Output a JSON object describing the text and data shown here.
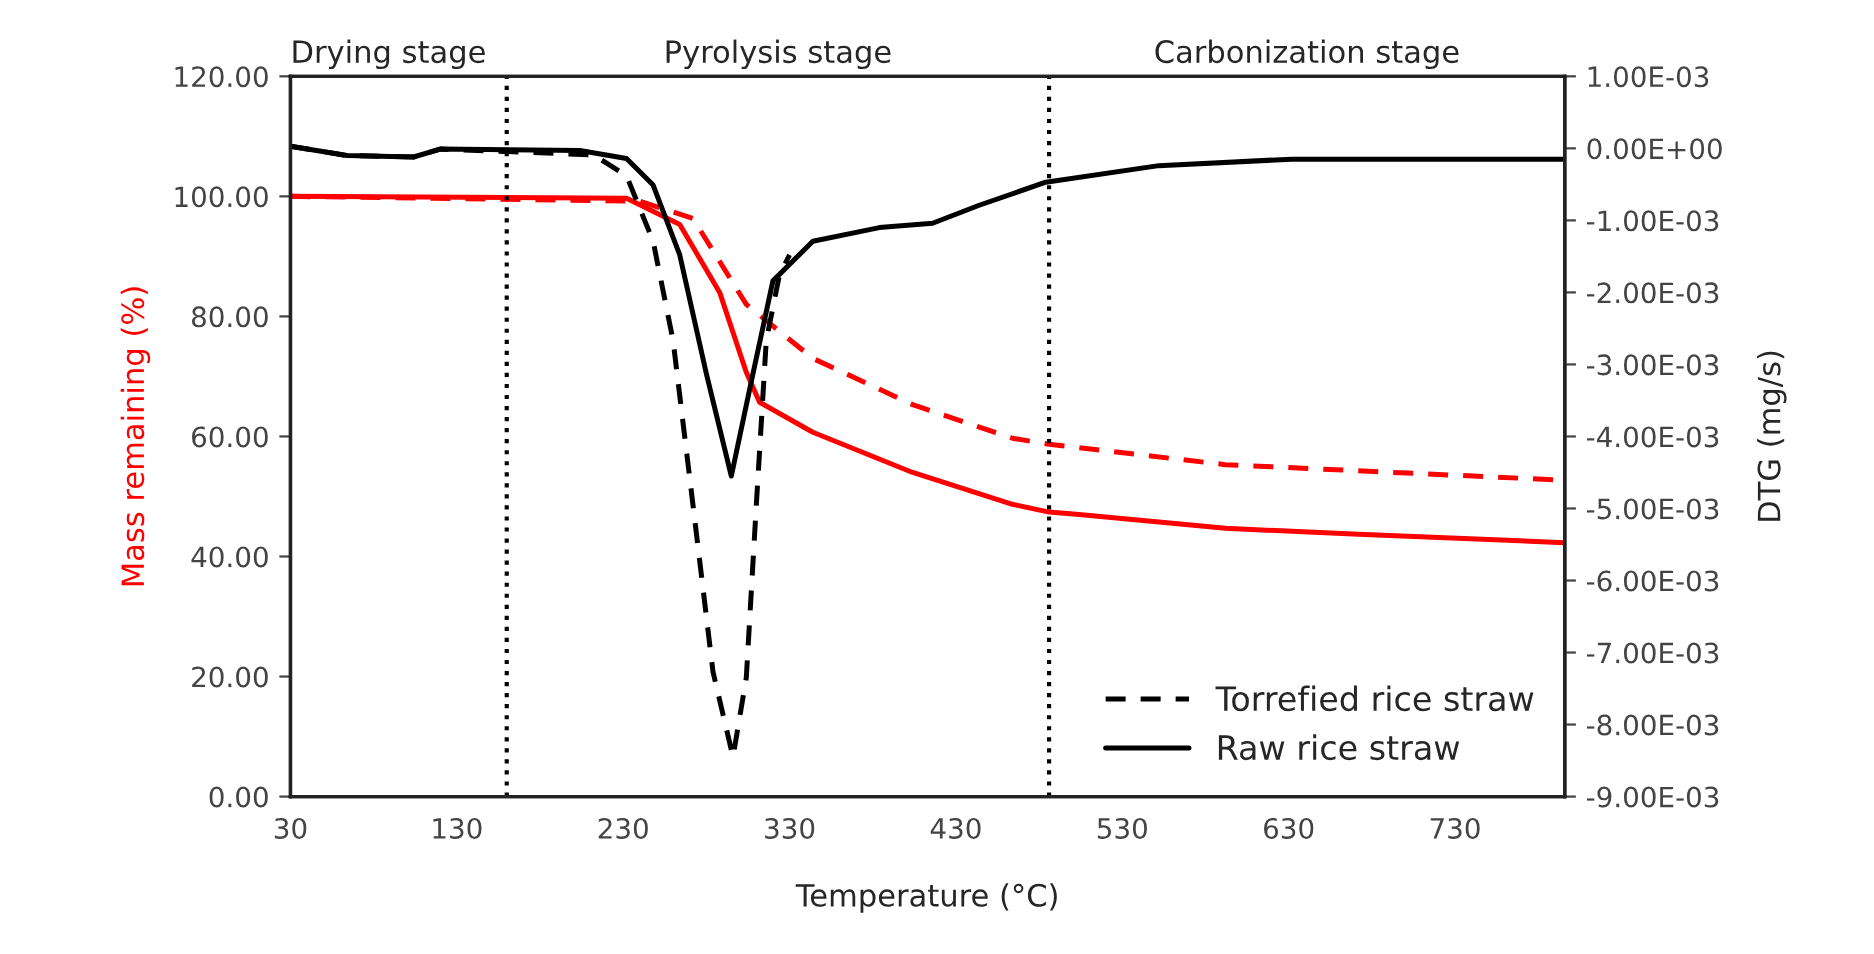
{
  "chart_data": {
    "type": "line",
    "xlabel": "Temperature (°C)",
    "ylabel": "Mass remaining (%)",
    "y2label": "DTG (mg/s)",
    "annotations": [
      "Drying stage",
      "Pyrolysis stage",
      "Carbonization stage"
    ],
    "xlim": [
      30,
      796
    ],
    "xticks": [
      30,
      130,
      230,
      330,
      430,
      530,
      630,
      730
    ],
    "ylim": [
      0,
      120
    ],
    "yticks": [
      {
        "value": 0,
        "label": "0.00"
      },
      {
        "value": 20,
        "label": "20.00"
      },
      {
        "value": 40,
        "label": "40.00"
      },
      {
        "value": 60,
        "label": "60.00"
      },
      {
        "value": 80,
        "label": "80.00"
      },
      {
        "value": 100,
        "label": "100.00"
      },
      {
        "value": 120,
        "label": "120.00"
      }
    ],
    "y2lim": [
      -0.009,
      0.001
    ],
    "y2ticks": [
      {
        "value": 0.001,
        "label": "1.00E-03"
      },
      {
        "value": 0,
        "label": "0.00E+00"
      },
      {
        "value": -0.001,
        "label": "-1.00E-03"
      },
      {
        "value": -0.002,
        "label": "-2.00E-03"
      },
      {
        "value": -0.003,
        "label": "-3.00E-03"
      },
      {
        "value": -0.004,
        "label": "-4.00E-03"
      },
      {
        "value": -0.005,
        "label": "-5.00E-03"
      },
      {
        "value": -0.006,
        "label": "-6.00E-03"
      },
      {
        "value": -0.007,
        "label": "-7.00E-03"
      },
      {
        "value": -0.008,
        "label": "-8.00E-03"
      },
      {
        "value": -0.009,
        "label": "-9.00E-03"
      }
    ],
    "ref_lines": [
      {
        "axis": "x",
        "value": 160,
        "color": "#000000",
        "line_style": "dotted"
      },
      {
        "axis": "x",
        "value": 486,
        "color": "#000000",
        "line_style": "dotted"
      }
    ],
    "grid": false,
    "legend": "bottom right",
    "marker": "none",
    "series": [
      {
        "color": "#ff0000",
        "line_style": "solid",
        "x": [
          30,
          232,
          264,
          288,
          304,
          312,
          344,
          404,
          464,
          486,
          504,
          592,
          672,
          796
        ],
        "values": [
          100,
          99.7,
          95.3,
          84,
          70.7,
          65.7,
          60.7,
          54,
          48.7,
          47.4,
          47,
          44.7,
          43.7,
          42.3
        ]
      },
      {
        "color": "#ff0000",
        "line_style": "dashed",
        "x": [
          30,
          240,
          272,
          304,
          344,
          404,
          464,
          486,
          592,
          796
        ],
        "values": [
          100,
          99.2,
          96.3,
          82,
          73,
          65.3,
          59.7,
          58.7,
          55.3,
          52.7
        ]
      },
      {
        "name": "Torrefied rice straw",
        "color": "#000000",
        "line_style": "dashed",
        "axis": "y2",
        "x": [
          30,
          64,
          104,
          120,
          212,
          232,
          248,
          260,
          272,
          284,
          296,
          304,
          310,
          316,
          324,
          330
        ],
        "values": [
          3e-05,
          -0.0001,
          -0.00012,
          -1e-05,
          -9e-05,
          -0.00038,
          -0.00129,
          -0.00267,
          -0.00496,
          -0.00727,
          -0.00845,
          -0.00735,
          -0.00496,
          -0.00267,
          -0.00175,
          -0.00148
        ]
      },
      {
        "name": "Raw rice straw",
        "color": "#000000",
        "line_style": "solid",
        "axis": "y2",
        "x": [
          30,
          64,
          104,
          120,
          204,
          232,
          248,
          264,
          280,
          295,
          308,
          320,
          344,
          384,
          416,
          444,
          484,
          552,
          632,
          796
        ],
        "values": [
          3e-05,
          -0.0001,
          -0.00012,
          -1e-05,
          -3e-05,
          -0.00014,
          -0.00051,
          -0.00148,
          -0.00313,
          -0.00455,
          -0.00313,
          -0.00184,
          -0.00129,
          -0.0011,
          -0.00104,
          -0.00079,
          -0.00047,
          -0.00024,
          -0.00015,
          -0.00015
        ]
      }
    ]
  }
}
